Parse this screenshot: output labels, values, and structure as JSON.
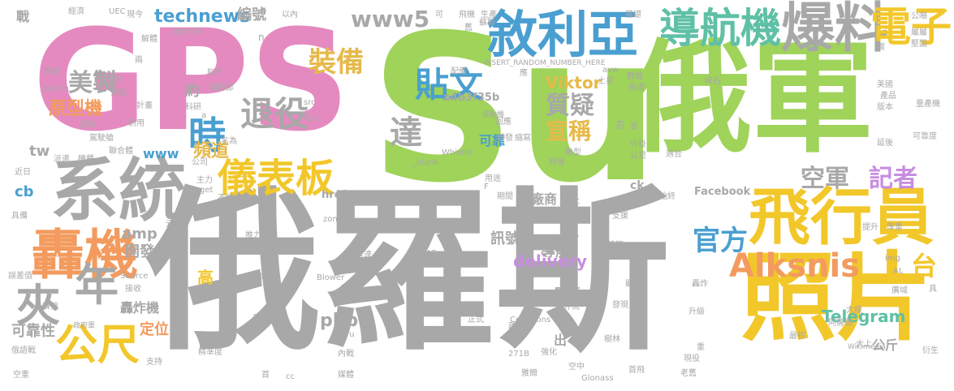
{
  "colors": {
    "gray": "#a8a8a8",
    "green": "#9fd35a",
    "pink": "#e58ac0",
    "blue": "#4a9fd0",
    "orange": "#f39b5f",
    "yellow": "#f2c72a",
    "teal": "#5fc0a6",
    "purple": "#c78de0",
    "lightgreen": "#b6d97b",
    "peach": "#f5b08a",
    "gold": "#e6b94a",
    "red": "#e8726a"
  },
  "words": [
    {
      "text": "Su",
      "color": "green"
    },
    {
      "text": "俄羅斯",
      "color": "gray"
    },
    {
      "text": "GPS",
      "color": "pink"
    },
    {
      "text": "俄軍",
      "color": "green"
    },
    {
      "text": "系統",
      "color": "gray"
    },
    {
      "text": "飛行員",
      "color": "yellow"
    },
    {
      "text": "照片",
      "color": "yellow"
    },
    {
      "text": "敘利亞",
      "color": "blue"
    },
    {
      "text": "導航機",
      "color": "teal"
    },
    {
      "text": "爆料",
      "color": "gray"
    },
    {
      "text": "電子",
      "color": "yellow"
    },
    {
      "text": "轟機",
      "color": "orange"
    },
    {
      "text": "儀表板",
      "color": "yellow"
    },
    {
      "text": "Alksnis",
      "color": "orange"
    },
    {
      "text": "退役",
      "color": "gray"
    },
    {
      "text": "時",
      "color": "blue"
    },
    {
      "text": "貼文",
      "color": "blue"
    },
    {
      "text": "年",
      "color": "gray"
    },
    {
      "text": "夾",
      "color": "gray"
    },
    {
      "text": "公尺",
      "color": "yellow"
    },
    {
      "text": "美製",
      "color": "gray"
    },
    {
      "text": "裝備",
      "color": "gold"
    },
    {
      "text": "www5",
      "color": "gray"
    },
    {
      "text": "空軍",
      "color": "gray"
    },
    {
      "text": "記者",
      "color": "purple"
    },
    {
      "text": "官方",
      "color": "blue"
    },
    {
      "text": "達",
      "color": "gray"
    },
    {
      "text": "質疑",
      "color": "gray"
    },
    {
      "text": "宣稱",
      "color": "gold"
    },
    {
      "text": "原型機",
      "color": "orange"
    },
    {
      "text": "頻道",
      "color": "gold"
    },
    {
      "text": "technews",
      "color": "blue"
    },
    {
      "text": "Viktor",
      "color": "gold"
    },
    {
      "text": "delivery",
      "color": "purple"
    },
    {
      "text": "Telegram",
      "color": "teal"
    },
    {
      "text": "台",
      "color": "yellow"
    },
    {
      "text": "高",
      "color": "yellow"
    },
    {
      "text": "開發",
      "color": "gray"
    },
    {
      "text": "amp",
      "color": "gray"
    },
    {
      "text": "php",
      "color": "gray"
    },
    {
      "text": "訊號",
      "color": "gray"
    },
    {
      "text": "導航",
      "color": "gray"
    },
    {
      "text": "廠商",
      "color": "gray"
    },
    {
      "text": "軍事",
      "color": "gray"
    },
    {
      "text": "可靠性",
      "color": "gray"
    },
    {
      "text": "定位",
      "color": "orange"
    },
    {
      "text": "轟炸機",
      "color": "gray"
    },
    {
      "text": "編號",
      "color": "gray"
    },
    {
      "text": "約",
      "color": "gray"
    },
    {
      "text": "Facebook",
      "color": "gray"
    },
    {
      "text": "a4b3f35b",
      "color": "gray"
    },
    {
      "text": "www",
      "color": "blue"
    },
    {
      "text": "tw",
      "color": "gray"
    },
    {
      "text": "cb",
      "color": "blue"
    },
    {
      "text": "公斤",
      "color": "gray"
    },
    {
      "text": "出",
      "color": "gray"
    },
    {
      "text": "可靠",
      "color": "blue"
    },
    {
      "text": "ck",
      "color": "gray"
    },
    {
      "text": "href",
      "color": "gray"
    },
    {
      "text": "INSERT_RANDOM_NUMBER_HERE",
      "color": "gray"
    },
    {
      "text": "戰",
      "color": "gray"
    },
    {
      "text": "經濟",
      "color": "gray"
    },
    {
      "text": "UEC",
      "color": "gray"
    },
    {
      "text": "現今",
      "color": "gray"
    },
    {
      "text": "飛機",
      "color": "gray"
    },
    {
      "text": "生產",
      "color": "gray"
    },
    {
      "text": "基礎",
      "color": "gray"
    },
    {
      "text": "公噸",
      "color": "gray"
    },
    {
      "text": "解體",
      "color": "gray"
    },
    {
      "text": "後衛式戰",
      "color": "gray"
    },
    {
      "text": "蘇聯",
      "color": "gray"
    },
    {
      "text": "屬屬",
      "color": "gray"
    },
    {
      "text": "馬赫",
      "color": "gray"
    },
    {
      "text": "兩",
      "color": "gray"
    },
    {
      "text": "取代",
      "color": "gray"
    },
    {
      "text": "avw",
      "color": "gray"
    },
    {
      "text": "堅固",
      "color": "gray"
    },
    {
      "text": "Saturn",
      "color": "gray"
    },
    {
      "text": "困境",
      "color": "gray"
    },
    {
      "text": "配備",
      "color": "gray"
    },
    {
      "text": "應",
      "color": "gray"
    },
    {
      "text": "土星",
      "color": "gray"
    },
    {
      "text": "數據",
      "color": "gray"
    },
    {
      "text": "長達",
      "color": "gray"
    },
    {
      "text": "峽谷",
      "color": "gray"
    },
    {
      "text": "國防部",
      "color": "gray"
    },
    {
      "text": "搭載",
      "color": "gray"
    },
    {
      "text": "計畫",
      "color": "gray"
    },
    {
      "text": "科研",
      "color": "gray"
    },
    {
      "text": "src",
      "color": "gray"
    },
    {
      "text": "美國",
      "color": "gray"
    },
    {
      "text": "產品",
      "color": "gray"
    },
    {
      "text": "版本",
      "color": "gray"
    },
    {
      "text": "量產機",
      "color": "gray"
    },
    {
      "text": "更新",
      "color": "gray"
    },
    {
      "text": "耐用",
      "color": "gray"
    },
    {
      "text": "陷入",
      "color": "gray"
    },
    {
      "text": "回應",
      "color": "gray"
    },
    {
      "text": "發動機",
      "color": "gray"
    },
    {
      "text": "長",
      "color": "gray"
    },
    {
      "text": "駕駛艙",
      "color": "gray"
    },
    {
      "text": "名為",
      "color": "gray"
    },
    {
      "text": "轉發",
      "color": "gray"
    },
    {
      "text": "縮寫",
      "color": "gray"
    },
    {
      "text": "機型",
      "color": "gray"
    },
    {
      "text": "可靠度",
      "color": "gray"
    },
    {
      "text": "聯合體",
      "color": "gray"
    },
    {
      "text": "Whistle",
      "color": "gray"
    },
    {
      "text": "外掛",
      "color": "gray"
    },
    {
      "text": "公里",
      "color": "gray"
    },
    {
      "text": "適合",
      "color": "gray"
    },
    {
      "text": "延後",
      "color": "gray"
    },
    {
      "text": "派遣",
      "color": "gray"
    },
    {
      "text": "機種",
      "color": "gray"
    },
    {
      "text": "公司",
      "color": "gray"
    },
    {
      "text": "_blank",
      "color": "gray"
    },
    {
      "text": "近日",
      "color": "gray"
    },
    {
      "text": "時速",
      "color": "gray"
    },
    {
      "text": "主力",
      "color": "gray"
    },
    {
      "text": "用途",
      "color": "gray"
    },
    {
      "text": "target",
      "color": "gray"
    },
    {
      "text": "不佳",
      "color": "gray"
    },
    {
      "text": "座艙",
      "color": "gray"
    },
    {
      "text": "期間",
      "color": "gray"
    },
    {
      "text": "批",
      "color": "gray"
    },
    {
      "text": "導致",
      "color": "gray"
    },
    {
      "text": "始終",
      "color": "gray"
    },
    {
      "text": "具備",
      "color": "gray"
    },
    {
      "text": "zoneid",
      "color": "gray"
    },
    {
      "text": "單具",
      "color": "gray"
    },
    {
      "text": "支援",
      "color": "gray"
    },
    {
      "text": "元件",
      "color": "gray"
    },
    {
      "text": "差億",
      "color": "gray"
    },
    {
      "text": "INS",
      "color": "gray"
    },
    {
      "text": "推力",
      "color": "gray"
    },
    {
      "text": "改為",
      "color": "gray"
    },
    {
      "text": "時期",
      "color": "gray"
    },
    {
      "text": "提升",
      "color": "gray"
    },
    {
      "text": "厚重",
      "color": "gray"
    },
    {
      "text": "WAAS",
      "color": "gray"
    },
    {
      "text": "雷達",
      "color": "gray"
    },
    {
      "text": "img",
      "color": "gray"
    },
    {
      "text": "AL",
      "color": "gray"
    },
    {
      "text": "誤差值",
      "color": "gray"
    },
    {
      "text": "Source",
      "color": "gray"
    },
    {
      "text": "對照",
      "color": "gray"
    },
    {
      "text": "Blower",
      "color": "gray"
    },
    {
      "text": "體積",
      "color": "gray"
    },
    {
      "text": "顯示",
      "color": "gray"
    },
    {
      "text": "轟炸",
      "color": "gray"
    },
    {
      "text": "接收",
      "color": "gray"
    },
    {
      "text": "架",
      "color": "gray"
    },
    {
      "text": "具",
      "color": "gray"
    },
    {
      "text": "廣域",
      "color": "gray"
    },
    {
      "text": "蘇俄",
      "color": "gray"
    },
    {
      "text": "外流",
      "color": "gray"
    },
    {
      "text": "發現",
      "color": "gray"
    },
    {
      "text": "升級",
      "color": "gray"
    },
    {
      "text": "大誤",
      "color": "gray"
    },
    {
      "text": "政府軍",
      "color": "gray"
    },
    {
      "text": "吹嘘",
      "color": "gray"
    },
    {
      "text": "正式",
      "color": "gray"
    },
    {
      "text": "Commons",
      "color": "gray"
    },
    {
      "text": "阿薩德",
      "color": "gray"
    },
    {
      "text": "Mil",
      "color": "gray"
    },
    {
      "text": "ru",
      "color": "gray"
    },
    {
      "text": "最初",
      "color": "gray"
    },
    {
      "text": "提供",
      "color": "gray"
    },
    {
      "text": "強化",
      "color": "gray"
    },
    {
      "text": "樹林",
      "color": "gray"
    },
    {
      "text": "大上",
      "color": "gray"
    },
    {
      "text": "Wikimedia",
      "color": "gray"
    },
    {
      "text": "俄語戰",
      "color": "gray"
    },
    {
      "text": "精準度",
      "color": "gray"
    },
    {
      "text": "內戰",
      "color": "gray"
    },
    {
      "text": "271B",
      "color": "gray"
    },
    {
      "text": "重",
      "color": "gray"
    },
    {
      "text": "現役",
      "color": "gray"
    },
    {
      "text": "衍生",
      "color": "gray"
    },
    {
      "text": "空重",
      "color": "gray"
    },
    {
      "text": "支持",
      "color": "gray"
    },
    {
      "text": "首",
      "color": "gray"
    },
    {
      "text": "cc",
      "color": "gray"
    },
    {
      "text": "媒體",
      "color": "gray"
    },
    {
      "text": "雅爾",
      "color": "gray"
    },
    {
      "text": "空中",
      "color": "gray"
    },
    {
      "text": "Glonass",
      "color": "gray"
    },
    {
      "text": "首飛",
      "color": "gray"
    },
    {
      "text": "老舊",
      "color": "gray"
    },
    {
      "text": "a",
      "color": "gray"
    },
    {
      "text": "n",
      "color": "gray"
    },
    {
      "text": "政府",
      "color": "gray"
    },
    {
      "text": "以內",
      "color": "gray"
    },
    {
      "text": "可",
      "color": "gray"
    },
    {
      "text": "舊",
      "color": "gray"
    },
    {
      "text": "碳",
      "color": "gray"
    },
    {
      "text": "名",
      "color": "gray"
    },
    {
      "text": "F",
      "color": "gray"
    }
  ]
}
